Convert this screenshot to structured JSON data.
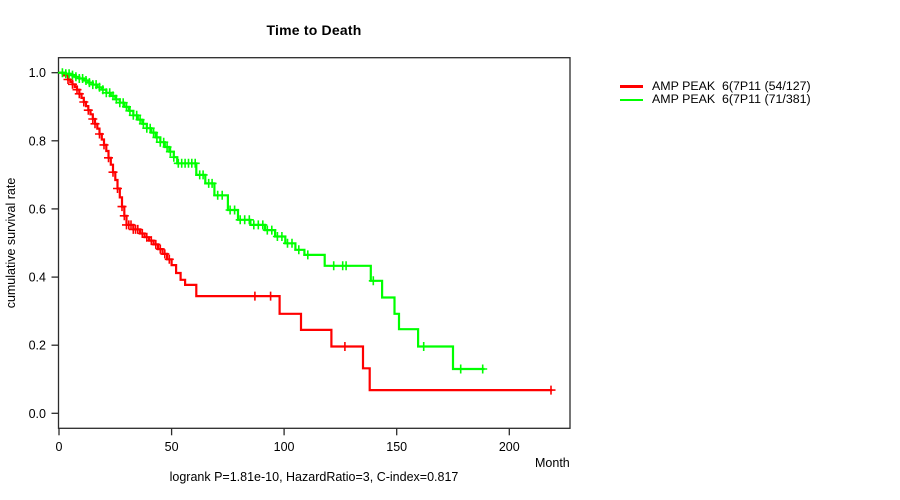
{
  "title": "Time to Death",
  "y_axis_label": "cumulative survival rate",
  "x_axis_label": "Month",
  "annotation": "logrank P=1.81e-10, HazardRatio=3, C-index=0.817",
  "legend": {
    "items": [
      {
        "label": "AMP PEAK  6(7P11 (54/127)",
        "color": "#FF0000"
      },
      {
        "label": "AMP PEAK  6(7P11 (71/381)",
        "color": "#00FF00"
      }
    ]
  },
  "axis_color": "#2b2b2b",
  "chart_data": {
    "type": "line",
    "subtype": "kaplan-meier-step",
    "title": "Time to Death",
    "xlabel": "Month",
    "ylabel": "cumulative survival rate",
    "annotation": "logrank P=1.81e-10, HazardRatio=3, C-index=0.817",
    "xlim": [
      0,
      227
    ],
    "ylim": [
      0,
      1
    ],
    "x_ticks": [
      0,
      50,
      100,
      150,
      200
    ],
    "y_ticks": [
      0.0,
      0.2,
      0.4,
      0.6,
      0.8,
      1.0
    ],
    "grid": false,
    "legend_position": "right-outside",
    "series": [
      {
        "name": "AMP PEAK  6(7P11 (54/127)",
        "color": "#FF0000",
        "events_total": "54/127",
        "steps": [
          [
            0,
            1.0
          ],
          [
            2,
            0.992
          ],
          [
            4,
            0.98
          ],
          [
            5,
            0.973
          ],
          [
            6,
            0.966
          ],
          [
            7,
            0.958
          ],
          [
            8,
            0.95
          ],
          [
            9,
            0.938
          ],
          [
            10,
            0.926
          ],
          [
            11,
            0.914
          ],
          [
            12,
            0.902
          ],
          [
            13,
            0.89
          ],
          [
            14,
            0.878
          ],
          [
            15,
            0.864
          ],
          [
            16,
            0.85
          ],
          [
            17,
            0.836
          ],
          [
            18,
            0.82
          ],
          [
            19,
            0.804
          ],
          [
            20,
            0.788
          ],
          [
            21,
            0.77
          ],
          [
            22,
            0.75
          ],
          [
            23,
            0.73
          ],
          [
            24,
            0.708
          ],
          [
            25,
            0.685
          ],
          [
            26,
            0.66
          ],
          [
            27,
            0.634
          ],
          [
            28,
            0.607
          ],
          [
            29,
            0.58
          ],
          [
            30,
            0.553
          ],
          [
            33,
            0.54
          ],
          [
            36,
            0.528
          ],
          [
            38,
            0.517
          ],
          [
            40,
            0.507
          ],
          [
            42,
            0.496
          ],
          [
            44,
            0.482
          ],
          [
            46,
            0.468
          ],
          [
            48,
            0.452
          ],
          [
            50,
            0.435
          ],
          [
            52,
            0.412
          ],
          [
            54,
            0.392
          ],
          [
            56,
            0.377
          ],
          [
            61,
            0.344
          ],
          [
            98,
            0.292
          ],
          [
            107.5,
            0.245
          ],
          [
            121,
            0.196
          ],
          [
            135,
            0.132
          ],
          [
            138,
            0.068
          ],
          [
            219,
            0.068
          ]
        ],
        "censor_marks": [
          4,
          6,
          8,
          9,
          11,
          13,
          15,
          16,
          18,
          20,
          22,
          24,
          26,
          28,
          29,
          30,
          31,
          32,
          33,
          34,
          35,
          37,
          39,
          41,
          43,
          45,
          47,
          49,
          87,
          94,
          127,
          218.5
        ]
      },
      {
        "name": "AMP PEAK  6(7P11 (71/381)",
        "color": "#00FF00",
        "events_total": "71/381",
        "steps": [
          [
            0,
            1.0
          ],
          [
            3,
            0.997
          ],
          [
            5,
            0.993
          ],
          [
            7,
            0.988
          ],
          [
            9,
            0.983
          ],
          [
            11,
            0.977
          ],
          [
            13,
            0.971
          ],
          [
            15,
            0.965
          ],
          [
            17,
            0.957
          ],
          [
            19,
            0.95
          ],
          [
            21,
            0.941
          ],
          [
            23,
            0.932
          ],
          [
            25,
            0.922
          ],
          [
            27,
            0.912
          ],
          [
            29,
            0.9
          ],
          [
            31,
            0.888
          ],
          [
            33,
            0.875
          ],
          [
            35,
            0.862
          ],
          [
            37,
            0.85
          ],
          [
            39,
            0.837
          ],
          [
            41,
            0.824
          ],
          [
            43,
            0.81
          ],
          [
            45,
            0.796
          ],
          [
            47,
            0.782
          ],
          [
            49,
            0.768
          ],
          [
            51,
            0.752
          ],
          [
            52.5,
            0.734
          ],
          [
            61,
            0.7
          ],
          [
            65,
            0.675
          ],
          [
            69,
            0.64
          ],
          [
            75,
            0.597
          ],
          [
            79.5,
            0.568
          ],
          [
            85,
            0.553
          ],
          [
            91.5,
            0.538
          ],
          [
            96,
            0.519
          ],
          [
            100.5,
            0.499
          ],
          [
            105,
            0.48
          ],
          [
            109,
            0.465
          ],
          [
            118,
            0.433
          ],
          [
            138.5,
            0.389
          ],
          [
            143.5,
            0.34
          ],
          [
            149,
            0.292
          ],
          [
            151,
            0.247
          ],
          [
            159.5,
            0.196
          ],
          [
            175,
            0.13
          ],
          [
            189,
            0.13
          ]
        ],
        "censor_marks": [
          1.5,
          3,
          4.5,
          6,
          7.5,
          9,
          10.5,
          12,
          13.5,
          15,
          16.5,
          18,
          19.5,
          21,
          22.5,
          24,
          25.5,
          27,
          28.5,
          30,
          31.5,
          33,
          34.5,
          36,
          37.5,
          39,
          40.5,
          42,
          43.5,
          45,
          46.5,
          48,
          49.5,
          51,
          53,
          54.5,
          56,
          57.5,
          59,
          60.5,
          62.5,
          64,
          66.5,
          68,
          70.5,
          72.5,
          76,
          78,
          80.5,
          82.5,
          84.5,
          86.5,
          88.5,
          90.5,
          92.5,
          94.5,
          97,
          99,
          101.5,
          103.5,
          106.5,
          110.5,
          122,
          126,
          127.5,
          139.6,
          162,
          178.4,
          188.2
        ]
      }
    ]
  }
}
